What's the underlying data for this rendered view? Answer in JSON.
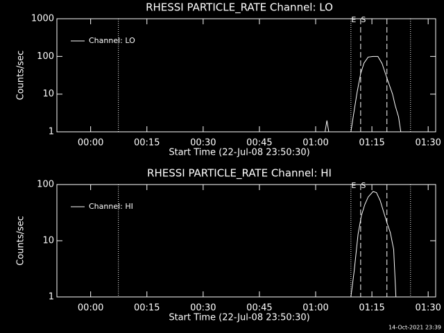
{
  "chart_data": [
    {
      "type": "line",
      "title": "RHESSI PARTICLE_RATE Channel: LO",
      "xlabel": "Start Time (22-Jul-08 23:50:30)",
      "ylabel": "Counts/sec",
      "log_y": true,
      "legend": "upper left",
      "x": [
        -9,
        62.5,
        63,
        63.5,
        69.4,
        70.2,
        71.1,
        72.0,
        72.9,
        74.0,
        75.3,
        76.6,
        77.7,
        78.6,
        79.6,
        80.5,
        81.2,
        82.1,
        82.7,
        92
      ],
      "series": [
        {
          "name": "Channel: LO",
          "color": "#ffffff",
          "values": [
            1,
            1,
            2,
            1,
            1,
            3.3,
            12,
            35,
            67,
            96,
            100,
            100,
            65,
            35,
            18,
            10,
            5,
            2.5,
            1,
            1
          ]
        }
      ],
      "xlim": [
        -9,
        92
      ],
      "ylim": [
        1,
        1000
      ],
      "xticks": [
        {
          "value": 0,
          "label": "00:00"
        },
        {
          "value": 15,
          "label": "00:15"
        },
        {
          "value": 30,
          "label": "00:30"
        },
        {
          "value": 45,
          "label": "00:45"
        },
        {
          "value": 60,
          "label": "01:00"
        },
        {
          "value": 75,
          "label": "01:15"
        },
        {
          "value": 90,
          "label": "01:30"
        }
      ],
      "yticks": [
        1,
        10,
        100,
        1000
      ],
      "vlines": [
        {
          "x": 7.4,
          "style": "dotted"
        },
        {
          "x": 69.4,
          "style": "dotted"
        },
        {
          "x": 72.0,
          "style": "dashed"
        },
        {
          "x": 79.0,
          "style": "dashed"
        },
        {
          "x": 85.3,
          "style": "dotted"
        }
      ],
      "annotations": [
        {
          "text": "E",
          "x": 69.4
        },
        {
          "text": "S",
          "x": 72.0
        }
      ]
    },
    {
      "type": "line",
      "title": "RHESSI PARTICLE_RATE Channel: HI",
      "xlabel": "Start Time (22-Jul-08 23:50:30)",
      "ylabel": "Counts/sec",
      "log_y": true,
      "legend": "upper left",
      "x": [
        -9,
        69.4,
        70.3,
        71.3,
        72.2,
        73.1,
        74.0,
        75.3,
        76.2,
        77.2,
        78.1,
        79.0,
        79.9,
        80.8,
        81.4,
        92
      ],
      "series": [
        {
          "name": "Channel: HI",
          "color": "#ffffff",
          "values": [
            1,
            1,
            3,
            13,
            28,
            44,
            60,
            75,
            72,
            52,
            33,
            21,
            14,
            7,
            1,
            1
          ]
        }
      ],
      "xlim": [
        -9,
        92
      ],
      "ylim": [
        1,
        100
      ],
      "xticks": [
        {
          "value": 0,
          "label": "00:00"
        },
        {
          "value": 15,
          "label": "00:15"
        },
        {
          "value": 30,
          "label": "00:30"
        },
        {
          "value": 45,
          "label": "00:45"
        },
        {
          "value": 60,
          "label": "01:00"
        },
        {
          "value": 75,
          "label": "01:15"
        },
        {
          "value": 90,
          "label": "01:30"
        }
      ],
      "yticks": [
        1,
        10,
        100
      ],
      "vlines": [
        {
          "x": 7.4,
          "style": "dotted"
        },
        {
          "x": 69.4,
          "style": "dotted"
        },
        {
          "x": 72.0,
          "style": "dashed"
        },
        {
          "x": 79.0,
          "style": "dashed"
        },
        {
          "x": 85.3,
          "style": "dotted"
        }
      ],
      "annotations": [
        {
          "text": "E",
          "x": 69.4
        },
        {
          "text": "S",
          "x": 72.0
        }
      ]
    }
  ],
  "footer": "14-Oct-2021 23:39"
}
